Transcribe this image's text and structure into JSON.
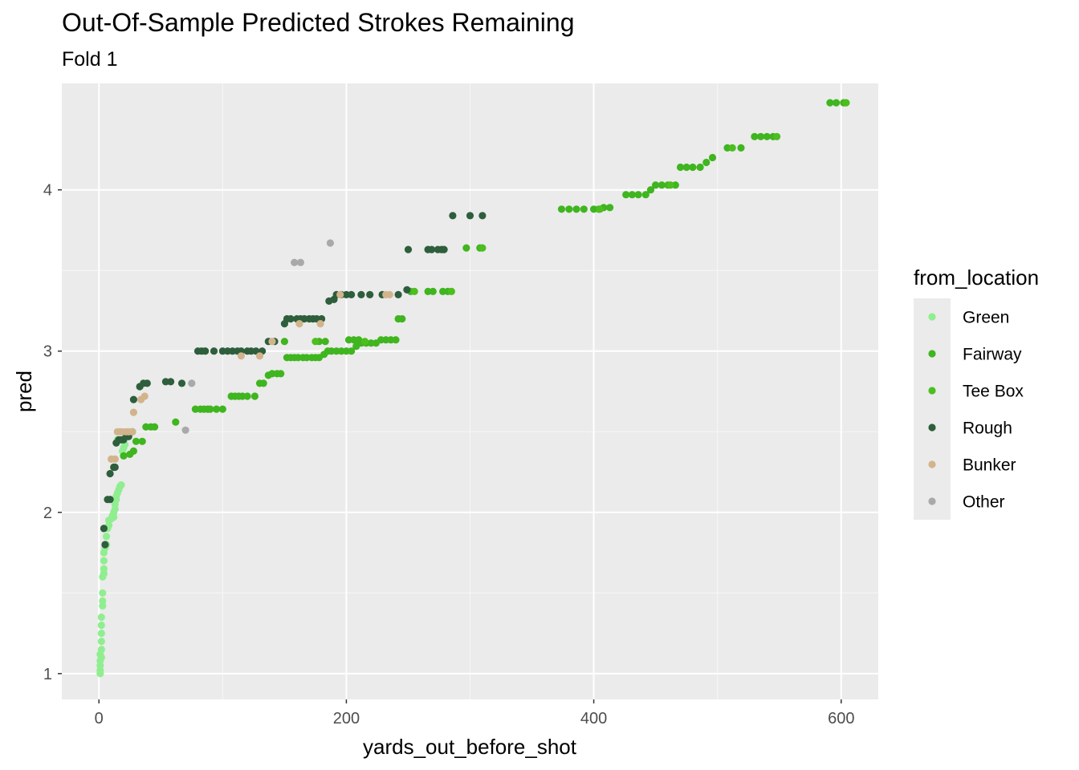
{
  "chart_data": {
    "type": "scatter",
    "title": "Out-Of-Sample Predicted Strokes Remaining",
    "subtitle": "Fold 1",
    "xlabel": "yards_out_before_shot",
    "ylabel": "pred",
    "xlim": [
      -30,
      630
    ],
    "ylim": [
      0.84,
      4.66
    ],
    "x_ticks": [
      0,
      200,
      400,
      600
    ],
    "y_ticks": [
      1,
      2,
      3,
      4
    ],
    "grid": true,
    "legend_title": "from_location",
    "legend_position": "right",
    "series": [
      {
        "name": "Green",
        "color": "#90ee90",
        "points": [
          [
            1,
            1.0
          ],
          [
            1,
            1.02
          ],
          [
            1,
            1.05
          ],
          [
            1,
            1.08
          ],
          [
            2,
            1.1
          ],
          [
            1,
            1.12
          ],
          [
            2,
            1.15
          ],
          [
            2,
            1.2
          ],
          [
            2,
            1.25
          ],
          [
            2,
            1.3
          ],
          [
            2,
            1.35
          ],
          [
            3,
            1.42
          ],
          [
            3,
            1.45
          ],
          [
            3,
            1.5
          ],
          [
            3,
            1.6
          ],
          [
            4,
            1.62
          ],
          [
            4,
            1.65
          ],
          [
            4,
            1.7
          ],
          [
            4,
            1.75
          ],
          [
            5,
            1.78
          ],
          [
            6,
            1.8
          ],
          [
            6,
            1.85
          ],
          [
            7,
            1.9
          ],
          [
            8,
            1.92
          ],
          [
            8,
            1.95
          ],
          [
            10,
            1.96
          ],
          [
            11,
            1.98
          ],
          [
            12,
            1.97
          ],
          [
            12,
            2.0
          ],
          [
            13,
            2.02
          ],
          [
            13,
            2.05
          ],
          [
            14,
            2.08
          ],
          [
            14,
            2.1
          ],
          [
            15,
            2.12
          ],
          [
            16,
            2.14
          ],
          [
            17,
            2.16
          ],
          [
            18,
            2.17
          ],
          [
            19,
            2.38
          ],
          [
            20,
            2.4
          ],
          [
            21,
            2.42
          ],
          [
            15,
            2.45
          ],
          [
            18,
            2.45
          ]
        ]
      },
      {
        "name": "Fairway",
        "color": "#3fb51f",
        "points": [
          [
            20,
            2.35
          ],
          [
            25,
            2.36
          ],
          [
            28,
            2.38
          ],
          [
            30,
            2.44
          ],
          [
            35,
            2.44
          ],
          [
            38,
            2.53
          ],
          [
            42,
            2.53
          ],
          [
            45,
            2.53
          ],
          [
            62,
            2.56
          ],
          [
            78,
            2.64
          ],
          [
            82,
            2.64
          ],
          [
            85,
            2.64
          ],
          [
            88,
            2.64
          ],
          [
            90,
            2.64
          ],
          [
            95,
            2.64
          ],
          [
            100,
            2.64
          ],
          [
            107,
            2.72
          ],
          [
            110,
            2.72
          ],
          [
            113,
            2.72
          ],
          [
            116,
            2.72
          ],
          [
            120,
            2.72
          ],
          [
            126,
            2.72
          ],
          [
            130,
            2.8
          ],
          [
            133,
            2.8
          ],
          [
            137,
            2.85
          ],
          [
            140,
            2.86
          ],
          [
            144,
            2.86
          ],
          [
            147,
            2.86
          ],
          [
            152,
            2.96
          ],
          [
            155,
            2.96
          ],
          [
            158,
            2.96
          ],
          [
            161,
            2.96
          ],
          [
            165,
            2.96
          ],
          [
            168,
            2.96
          ],
          [
            172,
            2.96
          ],
          [
            175,
            2.96
          ],
          [
            178,
            2.96
          ],
          [
            182,
            2.98
          ],
          [
            185,
            3.0
          ],
          [
            188,
            3.0
          ],
          [
            192,
            3.0
          ],
          [
            196,
            3.0
          ],
          [
            200,
            3.0
          ],
          [
            204,
            3.0
          ],
          [
            208,
            3.03
          ],
          [
            212,
            3.05
          ],
          [
            216,
            3.05
          ],
          [
            220,
            3.05
          ],
          [
            224,
            3.05
          ],
          [
            228,
            3.07
          ],
          [
            232,
            3.07
          ],
          [
            236,
            3.07
          ],
          [
            240,
            3.07
          ],
          [
            242,
            3.2
          ],
          [
            245,
            3.2
          ],
          [
            150,
            3.06
          ],
          [
            178,
            3.06
          ],
          [
            183,
            3.06
          ],
          [
            202,
            3.07
          ],
          [
            206,
            3.07
          ],
          [
            210,
            3.07
          ],
          [
            252,
            3.37
          ],
          [
            266,
            3.37
          ],
          [
            270,
            3.37
          ],
          [
            278,
            3.37
          ],
          [
            282,
            3.37
          ],
          [
            297,
            3.64
          ],
          [
            308,
            3.64
          ],
          [
            374,
            3.88
          ],
          [
            380,
            3.88
          ],
          [
            386,
            3.88
          ],
          [
            392,
            3.88
          ],
          [
            400,
            3.88
          ],
          [
            404,
            3.88
          ],
          [
            408,
            3.89
          ],
          [
            413,
            3.89
          ],
          [
            426,
            3.97
          ],
          [
            431,
            3.97
          ],
          [
            436,
            3.97
          ],
          [
            442,
            3.97
          ],
          [
            446,
            4.0
          ],
          [
            450,
            4.03
          ],
          [
            455,
            4.03
          ],
          [
            460,
            4.03
          ],
          [
            466,
            4.03
          ],
          [
            470,
            4.14
          ],
          [
            475,
            4.14
          ],
          [
            480,
            4.14
          ],
          [
            486,
            4.14
          ],
          [
            491,
            4.17
          ],
          [
            496,
            4.2
          ],
          [
            508,
            4.26
          ],
          [
            519,
            4.26
          ],
          [
            530,
            4.33
          ],
          [
            535,
            4.33
          ],
          [
            540,
            4.33
          ],
          [
            545,
            4.33
          ],
          [
            591,
            4.54
          ],
          [
            596,
            4.54
          ],
          [
            602,
            4.54
          ]
        ]
      },
      {
        "name": "Tee Box",
        "color": "#4cbe1f",
        "points": [
          [
            175,
            3.06
          ],
          [
            215,
            3.06
          ],
          [
            255,
            3.37
          ],
          [
            285,
            3.37
          ],
          [
            310,
            3.64
          ],
          [
            405,
            3.88
          ],
          [
            462,
            4.03
          ],
          [
            512,
            4.26
          ],
          [
            548,
            4.33
          ],
          [
            604,
            4.54
          ]
        ]
      },
      {
        "name": "Rough",
        "color": "#2e5e3c",
        "points": [
          [
            4,
            1.9
          ],
          [
            5,
            1.8
          ],
          [
            7,
            2.08
          ],
          [
            9,
            2.08
          ],
          [
            9,
            2.24
          ],
          [
            12,
            2.28
          ],
          [
            13,
            2.28
          ],
          [
            14,
            2.43
          ],
          [
            16,
            2.45
          ],
          [
            18,
            2.45
          ],
          [
            20,
            2.45
          ],
          [
            22,
            2.47
          ],
          [
            24,
            2.47
          ],
          [
            27,
            2.5
          ],
          [
            28,
            2.7
          ],
          [
            33,
            2.78
          ],
          [
            36,
            2.8
          ],
          [
            39,
            2.8
          ],
          [
            54,
            2.81
          ],
          [
            58,
            2.81
          ],
          [
            67,
            2.8
          ],
          [
            80,
            3.0
          ],
          [
            83,
            3.0
          ],
          [
            86,
            3.0
          ],
          [
            93,
            3.0
          ],
          [
            100,
            3.0
          ],
          [
            104,
            3.0
          ],
          [
            108,
            3.0
          ],
          [
            112,
            3.0
          ],
          [
            115,
            3.0
          ],
          [
            120,
            3.0
          ],
          [
            123,
            3.0
          ],
          [
            127,
            3.0
          ],
          [
            132,
            3.0
          ],
          [
            137,
            3.06
          ],
          [
            142,
            3.06
          ],
          [
            150,
            3.17
          ],
          [
            152,
            3.2
          ],
          [
            155,
            3.2
          ],
          [
            160,
            3.2
          ],
          [
            163,
            3.2
          ],
          [
            166,
            3.2
          ],
          [
            170,
            3.2
          ],
          [
            173,
            3.2
          ],
          [
            176,
            3.2
          ],
          [
            180,
            3.2
          ],
          [
            186,
            3.31
          ],
          [
            190,
            3.32
          ],
          [
            192,
            3.35
          ],
          [
            196,
            3.35
          ],
          [
            200,
            3.35
          ],
          [
            204,
            3.35
          ],
          [
            212,
            3.35
          ],
          [
            219,
            3.35
          ],
          [
            229,
            3.35
          ],
          [
            242,
            3.35
          ],
          [
            249,
            3.38
          ],
          [
            250,
            3.63
          ],
          [
            266,
            3.63
          ],
          [
            269,
            3.63
          ],
          [
            274,
            3.63
          ],
          [
            277,
            3.63
          ],
          [
            279,
            3.63
          ],
          [
            286,
            3.84
          ],
          [
            300,
            3.84
          ],
          [
            310,
            3.84
          ]
        ]
      },
      {
        "name": "Bunker",
        "color": "#d2b48c",
        "points": [
          [
            10,
            2.33
          ],
          [
            13,
            2.33
          ],
          [
            15,
            2.5
          ],
          [
            17,
            2.5
          ],
          [
            19,
            2.5
          ],
          [
            22,
            2.5
          ],
          [
            24,
            2.5
          ],
          [
            27,
            2.5
          ],
          [
            28,
            2.62
          ],
          [
            34,
            2.7
          ],
          [
            37,
            2.72
          ],
          [
            115,
            2.97
          ],
          [
            130,
            2.97
          ],
          [
            140,
            3.06
          ],
          [
            162,
            3.17
          ],
          [
            179,
            3.17
          ],
          [
            195,
            3.35
          ],
          [
            232,
            3.35
          ],
          [
            235,
            3.35
          ]
        ]
      },
      {
        "name": "Other",
        "color": "#a9a9a9",
        "points": [
          [
            70,
            2.51
          ],
          [
            75,
            2.8
          ],
          [
            158,
            3.55
          ],
          [
            163,
            3.55
          ],
          [
            187,
            3.67
          ]
        ]
      }
    ]
  }
}
